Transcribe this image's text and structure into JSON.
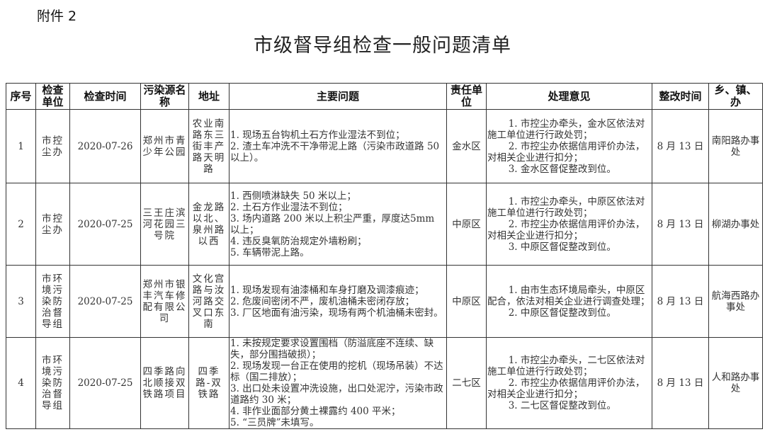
{
  "attachment_label": "附件 2",
  "title": "市级督导组检查一般问题清单",
  "table": {
    "headers": [
      "序号",
      "检查单位",
      "检查时间",
      "污染源名称",
      "地址",
      "主要问题",
      "责任单位",
      "处理意见",
      "整改时间",
      "乡、镇、办"
    ],
    "rows": [
      {
        "no": "1",
        "unit": "市控尘办",
        "date": "2020-07-26",
        "source": "郑州市青少年公园",
        "address": "农业南路东三街丰产路天明路",
        "problems": [
          "1. 现场五台钩机土石方作业湿法不到位；",
          "2. 渣土车冲洗不干净带泥上路（污染市政道路 50 以上）。"
        ],
        "responsible": "金水区",
        "opinions": [
          "1. 市控尘办牵头，金水区依法对施工单位进行行政处罚；",
          "2. 市控尘办依据信用评价办法，对相关企业进行扣分；",
          "3. 金水区督促整改到位。"
        ],
        "deadline": "8 月 13 日",
        "town": "南阳路办事处"
      },
      {
        "no": "2",
        "unit": "市控尘办",
        "date": "2020-07-25",
        "source": "三王庄滨河花园三号院",
        "address": "金龙路以北、泉州路以西",
        "problems": [
          "1. 西侧喷淋缺失 50 米以上；",
          "2. 土石方作业湿法不到位；",
          "3. 场内道路 200 米以上积尘严重，厚度达5mm 以上；",
          "4. 违反臭氧防治规定外墙粉刷；",
          "5. 车辆带泥上路。"
        ],
        "responsible": "中原区",
        "opinions": [
          "1. 市控尘办牵头，中原区依法对施工单位进行行政处罚；",
          "2. 市控尘办依据信用评价办法，对相关企业进行扣分；",
          "3. 中原区督促整改到位。"
        ],
        "deadline": "8 月 13 日",
        "town": "柳湖办事处"
      },
      {
        "no": "3",
        "unit": "市环境污染防治督导组",
        "date": "2020-07-25",
        "source": "郑州市银丰汽车修配有限公司",
        "address": "文化宫路与汝河路交叉口东南",
        "problems": [
          "1. 现场发现有油漆桶和车身打磨及调漆痕迹；",
          "2. 危废间密闭不严，废机油桶未密闭存放；",
          "3. 厂区地面有油污染，现场有两个机油桶未密封。"
        ],
        "responsible": "中原区",
        "opinions": [
          "1. 由市生态环境局牵头，中原区配合，依法对相关企业进行调查处理；",
          "2. 中原区督促整改到位。"
        ],
        "deadline": "8 月 13 日",
        "town": "航海西路办事处"
      },
      {
        "no": "4",
        "unit": "市环境污染防治督导组",
        "date": "2020-07-25",
        "source": "四季路向北顺接双铁路项目",
        "address": "四季路-双铁路",
        "problems": [
          "1. 未按规定要求设置围档（防溢底座不连续、缺失，部分围挡破损）；",
          "2. 现场发现一台正在使用的挖机（现场吊装）不达标（国二排放）；",
          "3. 出口处未设置冲洗设施，出口处泥泞，污染市政道路约 30 米；",
          "4. 非作业面部分黄土裸露约 400 平米；",
          "5. “三员牌”未填写。"
        ],
        "responsible": "二七区",
        "opinions": [
          "1. 市控尘办牵头，二七区依法对施工单位进行行政处罚；",
          "2. 市控尘办依据信用评价办法，对相关企业进行扣分；",
          "3. 二七区督促整改到位。"
        ],
        "deadline": "8 月 13 日",
        "town": "人和路办事处"
      }
    ]
  }
}
